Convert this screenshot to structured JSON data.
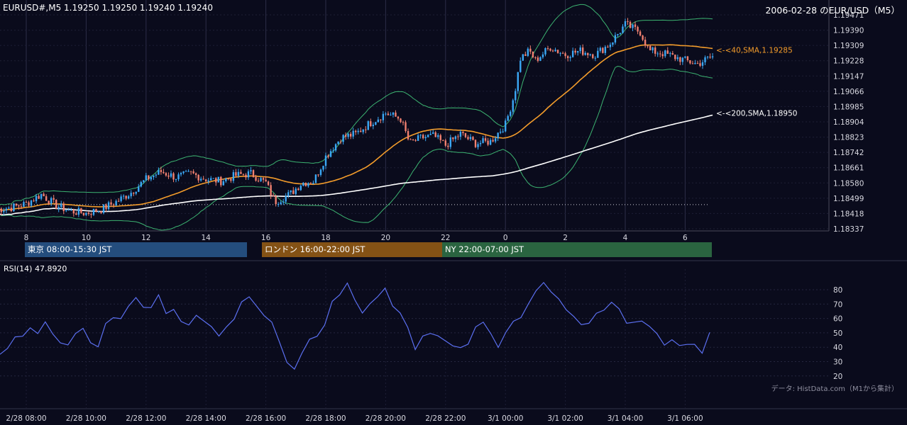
{
  "header": {
    "quote": "EURUSD#,M5 1.19250 1.19250 1.19240 1.19240",
    "title": "2006-02-28 のEUR/USD（M5）"
  },
  "sessions": [
    {
      "label": "東京 08:00-15:30 JST",
      "color": "#244d7d"
    },
    {
      "label": "ロンドン 16:00-22:00 JST",
      "color": "#845215"
    },
    {
      "label": "NY 22:00-07:00 JST",
      "color": "#2a6440"
    }
  ],
  "rsi_label": "RSI(14) 47.8920",
  "source": "データ: HistData.com（M1から集計）",
  "chart_data": [
    {
      "type": "candlestick",
      "title": "EURUSD#,M5",
      "x_ticks": [
        "8",
        "10",
        "12",
        "14",
        "16",
        "18",
        "20",
        "22",
        "0",
        "2",
        "4",
        "6"
      ],
      "y_ticks": [
        1.19471,
        1.1939,
        1.19309,
        1.19228,
        1.19147,
        1.19066,
        1.18985,
        1.18904,
        1.18823,
        1.18742,
        1.18661,
        1.1858,
        1.18499,
        1.18418,
        1.18337
      ],
      "ylim": [
        1.18337,
        1.19471
      ],
      "close_path": [
        [
          7.0,
          1.1844
        ],
        [
          7.5,
          1.1845
        ],
        [
          8.0,
          1.1847
        ],
        [
          8.5,
          1.1852
        ],
        [
          9.0,
          1.1846
        ],
        [
          9.5,
          1.1843
        ],
        [
          10.0,
          1.1842
        ],
        [
          10.5,
          1.1844
        ],
        [
          11.0,
          1.1848
        ],
        [
          11.5,
          1.1853
        ],
        [
          12.0,
          1.186
        ],
        [
          12.5,
          1.1864
        ],
        [
          13.0,
          1.1861
        ],
        [
          13.5,
          1.1863
        ],
        [
          14.0,
          1.186
        ],
        [
          14.5,
          1.1859
        ],
        [
          15.0,
          1.1862
        ],
        [
          15.5,
          1.1863
        ],
        [
          16.0,
          1.1858
        ],
        [
          16.3,
          1.1848
        ],
        [
          16.8,
          1.1852
        ],
        [
          17.2,
          1.1858
        ],
        [
          17.6,
          1.1859
        ],
        [
          18.0,
          1.1872
        ],
        [
          18.5,
          1.1882
        ],
        [
          19.0,
          1.1884
        ],
        [
          19.5,
          1.189
        ],
        [
          20.0,
          1.1895
        ],
        [
          20.5,
          1.1892
        ],
        [
          20.8,
          1.1879
        ],
        [
          21.2,
          1.1882
        ],
        [
          21.6,
          1.1883
        ],
        [
          22.0,
          1.1878
        ],
        [
          22.5,
          1.1884
        ],
        [
          23.0,
          1.1879
        ],
        [
          23.5,
          1.188
        ],
        [
          24.0,
          1.1889
        ],
        [
          24.3,
          1.1905
        ],
        [
          24.5,
          1.1924
        ],
        [
          24.8,
          1.1928
        ],
        [
          25.0,
          1.1923
        ],
        [
          25.5,
          1.193
        ],
        [
          26.0,
          1.1926
        ],
        [
          26.5,
          1.1928
        ],
        [
          27.0,
          1.1926
        ],
        [
          27.5,
          1.1932
        ],
        [
          28.0,
          1.1942
        ],
        [
          28.5,
          1.1938
        ],
        [
          28.8,
          1.1928
        ],
        [
          29.2,
          1.1927
        ],
        [
          29.6,
          1.1925
        ],
        [
          30.0,
          1.1923
        ],
        [
          30.4,
          1.1921
        ],
        [
          30.9,
          1.1925
        ]
      ],
      "sma40": {
        "name": "<-<40,SMA,1.19285",
        "value": 1.19285,
        "color": "#f39c2b"
      },
      "sma200": {
        "name": "<-<200,SMA,1.18950",
        "value": 1.1895,
        "color": "#ffffff"
      },
      "bollinger_color": "#3cb371",
      "up_color": "#3ba8f5",
      "down_color": "#f08070",
      "reference_level": 1.18465
    },
    {
      "type": "line",
      "title": "RSI(14) 47.8920",
      "y_ticks": [
        80,
        70,
        60,
        50,
        40,
        30,
        20
      ],
      "ylim": [
        20,
        85
      ],
      "x_ticks": [
        "2/28 08:00",
        "2/28 10:00",
        "2/28 12:00",
        "2/28 14:00",
        "2/28 16:00",
        "2/28 18:00",
        "2/28 20:00",
        "2/28 22:00",
        "3/1 00:00",
        "3/1 02:00",
        "3/1 04:00",
        "3/1 06:00"
      ],
      "line_color": "#5b6ff0",
      "series": [
        {
          "values": [
            33,
            42,
            50,
            45,
            55,
            48,
            60,
            52,
            45,
            40,
            48,
            52,
            44,
            38,
            55,
            62,
            58,
            67,
            72,
            65,
            70,
            75,
            62,
            68,
            60,
            55,
            62,
            58,
            52,
            48,
            55,
            62,
            72,
            78,
            68,
            60,
            55,
            42,
            32,
            25,
            38,
            45,
            50,
            58,
            70,
            78,
            82,
            75,
            65,
            72,
            78,
            80,
            70,
            62,
            52,
            38,
            45,
            52,
            48,
            42,
            38,
            40,
            45,
            52,
            55,
            48,
            42,
            52,
            58,
            62,
            68,
            78,
            85,
            80,
            72,
            65,
            60,
            58,
            55,
            62,
            68,
            72,
            65,
            58,
            55,
            60,
            52,
            48,
            42,
            45,
            42,
            40,
            42,
            38,
            48
          ]
        }
      ]
    }
  ]
}
